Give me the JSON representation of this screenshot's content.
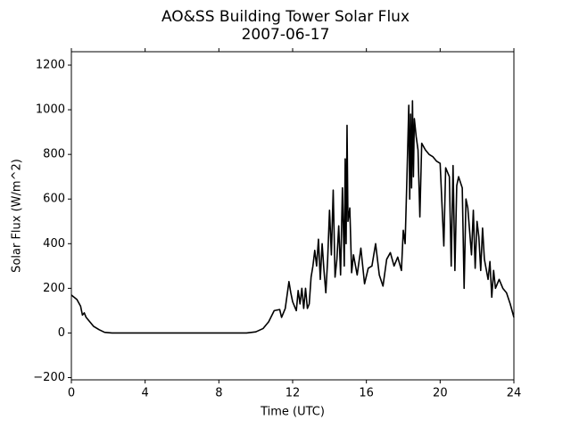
{
  "chart_data": {
    "type": "line",
    "title": "AO&SS Building Tower Solar Flux",
    "subtitle": "2007-06-17",
    "x_label": "Time (UTC)",
    "y_label": "Solar Flux (W/m^2)",
    "color": "#000000",
    "x": [
      0,
      0.3,
      0.5,
      0.6,
      0.7,
      0.8,
      1.0,
      1.2,
      1.5,
      1.8,
      2.2,
      3,
      5,
      7,
      9.5,
      10,
      10.4,
      10.7,
      11,
      11.3,
      11.4,
      11.6,
      11.8,
      11.9,
      12,
      12.2,
      12.3,
      12.4,
      12.5,
      12.6,
      12.7,
      12.8,
      12.9,
      13.0,
      13.1,
      13.2,
      13.3,
      13.4,
      13.5,
      13.6,
      13.7,
      13.8,
      13.9,
      14.0,
      14.1,
      14.2,
      14.3,
      14.4,
      14.5,
      14.6,
      14.7,
      14.8,
      14.85,
      14.9,
      14.95,
      15.0,
      15.1,
      15.2,
      15.3,
      15.5,
      15.7,
      15.9,
      16.1,
      16.3,
      16.5,
      16.7,
      16.9,
      17.1,
      17.3,
      17.5,
      17.7,
      17.9,
      18.0,
      18.1,
      18.2,
      18.3,
      18.35,
      18.4,
      18.45,
      18.5,
      18.55,
      18.6,
      18.7,
      18.8,
      18.9,
      19.0,
      19.2,
      19.4,
      19.6,
      19.8,
      20.0,
      20.2,
      20.3,
      20.5,
      20.6,
      20.7,
      20.8,
      20.9,
      21.0,
      21.2,
      21.3,
      21.4,
      21.5,
      21.7,
      21.8,
      21.9,
      22.0,
      22.1,
      22.2,
      22.3,
      22.4,
      22.6,
      22.7,
      22.8,
      22.9,
      23.0,
      23.2,
      23.4,
      23.6,
      23.8,
      24
    ],
    "values": [
      170,
      150,
      120,
      80,
      90,
      70,
      50,
      30,
      15,
      3,
      0,
      0,
      0,
      0,
      0,
      5,
      20,
      50,
      100,
      105,
      70,
      110,
      230,
      180,
      140,
      100,
      190,
      130,
      200,
      110,
      200,
      110,
      130,
      250,
      300,
      370,
      300,
      420,
      240,
      400,
      280,
      180,
      330,
      550,
      350,
      640,
      250,
      330,
      480,
      260,
      650,
      300,
      780,
      400,
      930,
      500,
      560,
      270,
      350,
      260,
      380,
      220,
      290,
      300,
      400,
      260,
      210,
      330,
      360,
      300,
      340,
      280,
      460,
      400,
      700,
      1020,
      600,
      980,
      650,
      1040,
      700,
      960,
      880,
      820,
      520,
      850,
      820,
      800,
      790,
      770,
      760,
      390,
      740,
      700,
      300,
      750,
      280,
      660,
      700,
      650,
      200,
      600,
      560,
      350,
      550,
      290,
      500,
      430,
      280,
      470,
      330,
      240,
      320,
      160,
      280,
      200,
      240,
      200,
      180,
      130,
      70
    ],
    "xlim": [
      0,
      24
    ],
    "xticks": [
      0,
      4,
      8,
      12,
      16,
      20,
      24
    ],
    "ylim": [
      -210,
      1260
    ],
    "yticks": [
      {
        "value": -200,
        "label": "−200"
      },
      0,
      200,
      400,
      600,
      800,
      1000,
      1200
    ]
  }
}
